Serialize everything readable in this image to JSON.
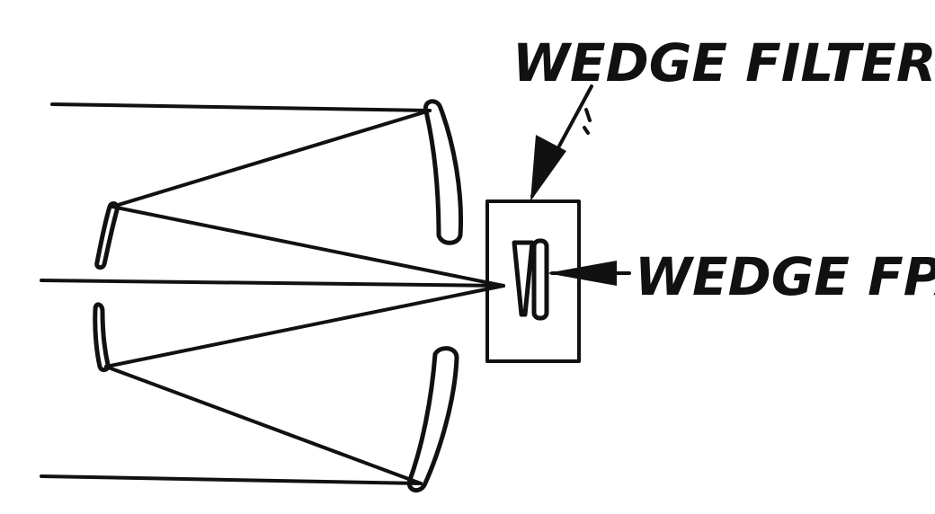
{
  "labels": {
    "wedge_filter": "WEDGE FILTER",
    "wedge_fpa": "WEDGE FPA"
  },
  "colors": {
    "ink": "#111111",
    "background": "#ffffff"
  }
}
